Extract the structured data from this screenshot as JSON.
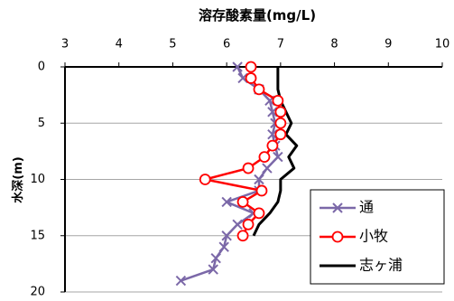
{
  "chart_data": {
    "type": "line",
    "title": "溶存酸素量(mg/L)",
    "xlabel": "",
    "ylabel": "水深(m)",
    "x_axis_position": "top",
    "y_axis_inverted": true,
    "xlim": [
      3,
      10
    ],
    "ylim": [
      0,
      20
    ],
    "xticks": [
      3,
      4,
      5,
      6,
      7,
      8,
      9,
      10
    ],
    "yticks": [
      0,
      5,
      10,
      15,
      20
    ],
    "grid": "horizontal",
    "legend_position": "bottom-right",
    "series": [
      {
        "name": "通",
        "color": "#7b68a8",
        "marker": "x",
        "points": [
          [
            6.2,
            0
          ],
          [
            6.3,
            1
          ],
          [
            6.6,
            2
          ],
          [
            6.8,
            3
          ],
          [
            6.85,
            4
          ],
          [
            6.9,
            5
          ],
          [
            6.85,
            6
          ],
          [
            6.9,
            7
          ],
          [
            6.95,
            8
          ],
          [
            6.75,
            9
          ],
          [
            6.6,
            10
          ],
          [
            6.6,
            11
          ],
          [
            6.0,
            12
          ],
          [
            6.5,
            13
          ],
          [
            6.2,
            14
          ],
          [
            6.0,
            15
          ],
          [
            5.95,
            16
          ],
          [
            5.8,
            17
          ],
          [
            5.75,
            18
          ],
          [
            5.15,
            19
          ]
        ]
      },
      {
        "name": "小牧",
        "color": "#ff0000",
        "marker": "circle",
        "points": [
          [
            6.45,
            0
          ],
          [
            6.45,
            1
          ],
          [
            6.6,
            2
          ],
          [
            6.95,
            3
          ],
          [
            7.0,
            4
          ],
          [
            7.0,
            5
          ],
          [
            7.0,
            6
          ],
          [
            6.85,
            7
          ],
          [
            6.7,
            8
          ],
          [
            6.4,
            9
          ],
          [
            5.6,
            10
          ],
          [
            6.65,
            11
          ],
          [
            6.3,
            12
          ],
          [
            6.6,
            13
          ],
          [
            6.4,
            14
          ],
          [
            6.3,
            15
          ]
        ]
      },
      {
        "name": "志ヶ浦",
        "color": "#000000",
        "marker": "none",
        "points": [
          [
            6.95,
            0
          ],
          [
            6.95,
            1
          ],
          [
            6.95,
            2
          ],
          [
            7.0,
            3
          ],
          [
            7.1,
            4
          ],
          [
            7.2,
            5
          ],
          [
            7.1,
            6
          ],
          [
            7.3,
            7
          ],
          [
            7.15,
            8
          ],
          [
            7.25,
            9
          ],
          [
            7.0,
            10
          ],
          [
            7.0,
            11
          ],
          [
            6.95,
            12
          ],
          [
            6.8,
            13
          ],
          [
            6.6,
            14
          ],
          [
            6.5,
            15
          ]
        ]
      }
    ]
  }
}
